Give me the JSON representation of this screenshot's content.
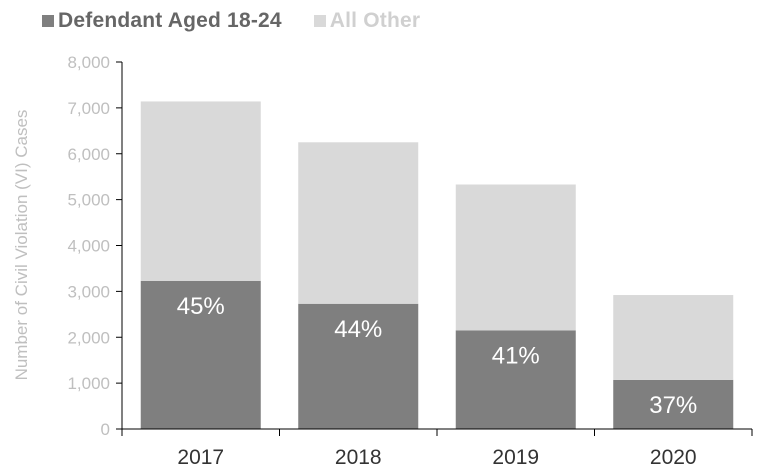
{
  "legend": {
    "items": [
      {
        "label": "Defendant Aged 18-24",
        "color": "#7f7f7f",
        "text_color": "#666666"
      },
      {
        "label": "All Other",
        "color": "#d9d9d9",
        "text_color": "#d0d0d0"
      }
    ]
  },
  "chart_data": {
    "type": "bar",
    "stacked": true,
    "categories": [
      "2017",
      "2018",
      "2019",
      "2020"
    ],
    "series": [
      {
        "name": "Defendant Aged 18-24",
        "values": [
          3230,
          2730,
          2150,
          1070
        ],
        "color": "#7f7f7f"
      },
      {
        "name": "All Other",
        "values": [
          3910,
          3520,
          3180,
          1850
        ],
        "color": "#d9d9d9"
      }
    ],
    "data_labels": [
      "45%",
      "44%",
      "41%",
      "37%"
    ],
    "ylabel": "Number of Civil Violation (VI) Cases",
    "ylim": [
      0,
      8000
    ],
    "yticks": [
      0,
      1000,
      2000,
      3000,
      4000,
      5000,
      6000,
      7000,
      8000
    ],
    "ytick_labels": [
      "0",
      "1,000",
      "2,000",
      "3,000",
      "4,000",
      "5,000",
      "6,000",
      "7,000",
      "8,000"
    ],
    "grid": false,
    "legend_position": "top-left"
  }
}
